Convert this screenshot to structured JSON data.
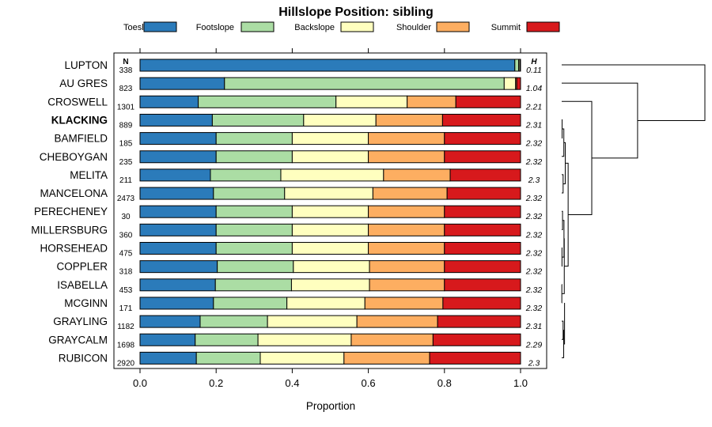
{
  "chart_data": {
    "type": "bar",
    "orientation": "horizontal",
    "stacked": true,
    "title": "Hillslope Position: sibling",
    "xlabel": "Proportion",
    "xlim": [
      0,
      1
    ],
    "xticks": [
      "0.0",
      "0.2",
      "0.4",
      "0.6",
      "0.8",
      "1.0"
    ],
    "xtick_values": [
      0,
      0.2,
      0.4,
      0.6,
      0.8,
      1.0
    ],
    "n_header": "N",
    "h_header": "H",
    "legend_position": "top",
    "dendrogram": true,
    "legend": [
      {
        "name": "Toeslope",
        "color": "#2b7bba"
      },
      {
        "name": "Footslope",
        "color": "#abdda4"
      },
      {
        "name": "Backslope",
        "color": "#ffffbf"
      },
      {
        "name": "Shoulder",
        "color": "#fdae61"
      },
      {
        "name": "Summit",
        "color": "#d7191c"
      }
    ],
    "categories": [
      "LUPTON",
      "AU GRES",
      "CROSWELL",
      "KLACKING",
      "BAMFIELD",
      "CHEBOYGAN",
      "MELITA",
      "MANCELONA",
      "PERECHENEY",
      "MILLERSBURG",
      "HORSEHEAD",
      "COPPLER",
      "ISABELLA",
      "MCGINN",
      "GRAYLING",
      "GRAYCALM",
      "RUBICON"
    ],
    "highlight": "KLACKING",
    "n": [
      "338",
      "823",
      "1301",
      "889",
      "185",
      "235",
      "211",
      "2473",
      "30",
      "360",
      "475",
      "318",
      "453",
      "171",
      "1182",
      "1698",
      "2920"
    ],
    "h": [
      "0.11",
      "1.04",
      "2.21",
      "2.31",
      "2.32",
      "2.32",
      "2.3",
      "2.32",
      "2.32",
      "2.32",
      "2.32",
      "2.32",
      "2.32",
      "2.32",
      "2.31",
      "2.29",
      "2.3"
    ],
    "series": [
      {
        "name": "Toeslope",
        "values": [
          0.985,
          0.222,
          0.153,
          0.19,
          0.2,
          0.2,
          0.185,
          0.193,
          0.2,
          0.2,
          0.2,
          0.203,
          0.198,
          0.193,
          0.158,
          0.145,
          0.148
        ]
      },
      {
        "name": "Footslope",
        "values": [
          0.01,
          0.735,
          0.362,
          0.24,
          0.2,
          0.2,
          0.185,
          0.187,
          0.2,
          0.2,
          0.2,
          0.2,
          0.2,
          0.193,
          0.177,
          0.165,
          0.168
        ]
      },
      {
        "name": "Backslope",
        "values": [
          0.003,
          0.03,
          0.187,
          0.19,
          0.2,
          0.2,
          0.27,
          0.232,
          0.2,
          0.2,
          0.2,
          0.2,
          0.205,
          0.205,
          0.235,
          0.245,
          0.22
        ]
      },
      {
        "name": "Shoulder",
        "values": [
          0.001,
          0.003,
          0.128,
          0.175,
          0.2,
          0.2,
          0.175,
          0.195,
          0.2,
          0.2,
          0.2,
          0.197,
          0.197,
          0.205,
          0.212,
          0.215,
          0.225
        ]
      },
      {
        "name": "Summit",
        "values": [
          0.001,
          0.01,
          0.17,
          0.205,
          0.2,
          0.2,
          0.185,
          0.193,
          0.2,
          0.2,
          0.2,
          0.2,
          0.2,
          0.204,
          0.218,
          0.23,
          0.239
        ]
      }
    ]
  }
}
